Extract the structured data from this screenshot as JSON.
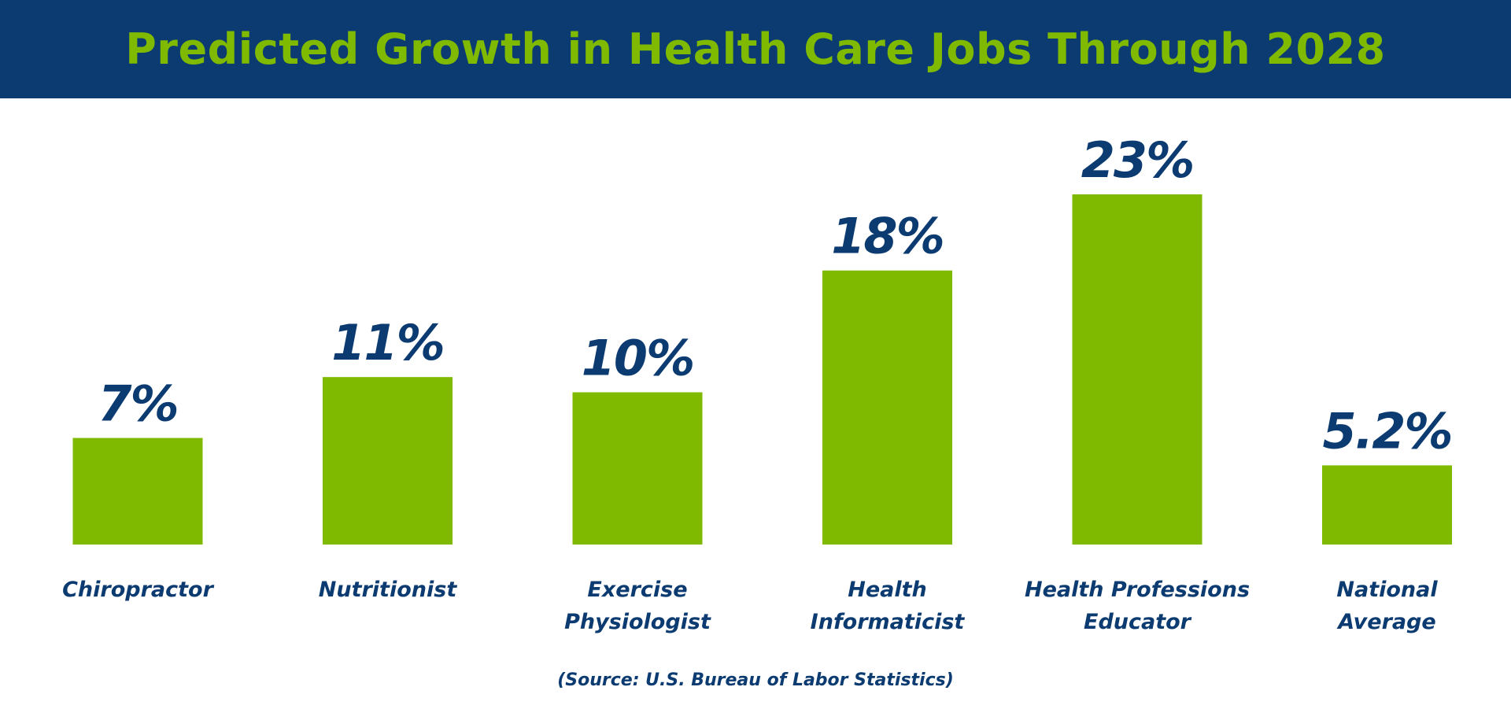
{
  "header": {
    "title": "Predicted Growth in Health Care Jobs Through 2028"
  },
  "source_note": "(Source: U.S. Bureau of Labor Statistics)",
  "colors": {
    "header_background": "#0b3b70",
    "title_text": "#7fba00",
    "bar": "#7fba00",
    "label_text": "#0b3b70"
  },
  "chart_data": {
    "type": "bar",
    "title": "Predicted Growth in Health Care Jobs Through 2028",
    "xlabel": "",
    "ylabel": "",
    "grid": false,
    "legend": "none",
    "categories": [
      [
        "Chiropractor"
      ],
      [
        "Nutritionist"
      ],
      [
        "Exercise",
        "Physiologist"
      ],
      [
        "Health",
        "Informaticist"
      ],
      [
        "Health Professions",
        "Educator"
      ],
      [
        "National",
        "Average"
      ]
    ],
    "values": [
      7,
      11,
      10,
      18,
      23,
      5.2
    ],
    "value_labels": [
      "7%",
      "11%",
      "10%",
      "18%",
      "23%",
      "5.2%"
    ],
    "ylim": [
      0,
      23
    ]
  }
}
